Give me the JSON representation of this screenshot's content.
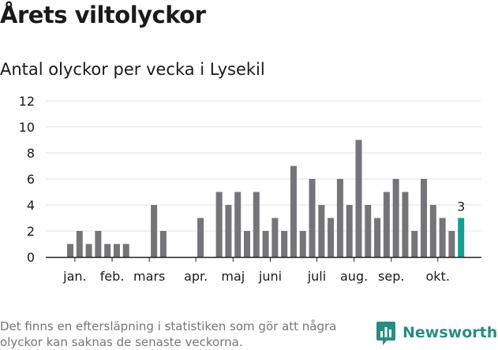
{
  "header": {
    "title": "Årets viltolyckor",
    "subtitle": "Antal olyckor per vecka i Lysekil"
  },
  "footer": {
    "note": "Det finns en eftersläpning i statistiken som gör att några olyckor kan saknas de senaste veckorna.",
    "brand": "Newsworthy",
    "logo_icon": "newsworthy-bar-chart-logo-icon"
  },
  "colors": {
    "bar": "#757479",
    "highlight": "#139e95",
    "grid": "#e3e3e3",
    "axis": "#222222",
    "brand": "#2b8c84"
  },
  "chart_data": {
    "type": "bar",
    "title": "Antal olyckor per vecka i Lysekil",
    "xlabel": "",
    "ylabel": "",
    "ylim": [
      0,
      12
    ],
    "yticks": [
      0,
      2,
      4,
      6,
      8,
      10,
      12
    ],
    "grid": true,
    "weeks": [
      1,
      2,
      3,
      4,
      5,
      6,
      7,
      8,
      9,
      10,
      11,
      12,
      13,
      14,
      15,
      16,
      17,
      18,
      19,
      20,
      21,
      22,
      23,
      24,
      25,
      26,
      27,
      28,
      29,
      30,
      31,
      32,
      33,
      34,
      35,
      36,
      37,
      38,
      39,
      40,
      41,
      42
    ],
    "values": [
      1,
      2,
      1,
      2,
      1,
      1,
      1,
      0,
      0,
      4,
      2,
      0,
      0,
      0,
      3,
      0,
      5,
      4,
      5,
      2,
      5,
      2,
      3,
      2,
      7,
      2,
      6,
      4,
      3,
      6,
      4,
      9,
      4,
      3,
      5,
      6,
      5,
      2,
      6,
      4,
      3,
      2
    ],
    "last_week": 43,
    "last_value": 3,
    "last_label": "3",
    "month_labels": [
      {
        "label": "jan.",
        "week": 1.5
      },
      {
        "label": "feb.",
        "week": 5.5
      },
      {
        "label": "mars",
        "week": 9.5
      },
      {
        "label": "apr.",
        "week": 14.5
      },
      {
        "label": "maj",
        "week": 18.5
      },
      {
        "label": "juni",
        "week": 22.5
      },
      {
        "label": "juli",
        "week": 27.5
      },
      {
        "label": "aug.",
        "week": 31.5
      },
      {
        "label": "sep.",
        "week": 35.5
      },
      {
        "label": "okt.",
        "week": 40.5
      }
    ]
  }
}
